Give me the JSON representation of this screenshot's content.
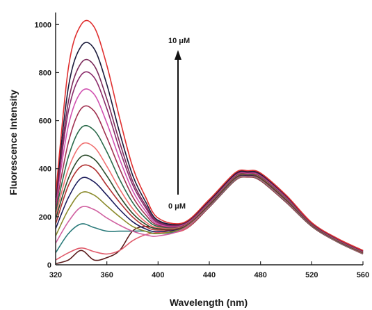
{
  "chart_data": {
    "type": "line",
    "xlabel": "Wavelength (nm)",
    "ylabel": "Fluorescence Intensity",
    "xlim": [
      320,
      560
    ],
    "ylim": [
      0,
      1050
    ],
    "x_ticks": [
      320,
      360,
      400,
      440,
      480,
      520,
      560
    ],
    "y_ticks": [
      0,
      200,
      400,
      600,
      800,
      1000
    ],
    "grid": false,
    "legend": "none",
    "annotations": {
      "top_label": "10 μM",
      "bottom_label": "0 μM",
      "arrow_direction": "up"
    },
    "series": [
      {
        "color": "#5a1a1a",
        "x": [
          320,
          330,
          340,
          350,
          360,
          370,
          380,
          390,
          400,
          420,
          440,
          460,
          470,
          480,
          500,
          520,
          540,
          560
        ],
        "y": [
          5,
          20,
          60,
          20,
          30,
          60,
          140,
          160,
          150,
          145,
          240,
          350,
          365,
          350,
          260,
          160,
          95,
          45
        ]
      },
      {
        "color": "#e05a6a",
        "x": [
          320,
          330,
          340,
          350,
          360,
          370,
          380,
          390,
          400,
          420,
          440,
          460,
          470,
          480,
          500,
          520,
          540,
          560
        ],
        "y": [
          20,
          50,
          70,
          55,
          45,
          60,
          100,
          125,
          135,
          145,
          242,
          352,
          366,
          352,
          262,
          162,
          96,
          46
        ]
      },
      {
        "color": "#2a7a7a",
        "x": [
          320,
          330,
          340,
          350,
          360,
          370,
          380,
          390,
          400,
          420,
          440,
          460,
          470,
          480,
          500,
          520,
          540,
          560
        ],
        "y": [
          50,
          130,
          170,
          155,
          140,
          140,
          140,
          140,
          130,
          150,
          244,
          354,
          368,
          354,
          264,
          163,
          97,
          47
        ]
      },
      {
        "color": "#d060a0",
        "x": [
          320,
          330,
          340,
          350,
          360,
          370,
          380,
          390,
          400,
          420,
          440,
          460,
          470,
          480,
          500,
          520,
          540,
          560
        ],
        "y": [
          90,
          180,
          240,
          230,
          195,
          165,
          140,
          125,
          120,
          150,
          246,
          356,
          369,
          356,
          266,
          164,
          98,
          48
        ]
      },
      {
        "color": "#8a8a2a",
        "x": [
          320,
          330,
          340,
          350,
          360,
          370,
          380,
          390,
          400,
          420,
          440,
          460,
          470,
          480,
          500,
          520,
          540,
          560
        ],
        "y": [
          120,
          230,
          300,
          290,
          245,
          200,
          160,
          140,
          130,
          155,
          248,
          358,
          371,
          358,
          268,
          165,
          99,
          49
        ]
      },
      {
        "color": "#1a1a5a",
        "x": [
          320,
          330,
          340,
          350,
          360,
          370,
          380,
          390,
          400,
          420,
          440,
          460,
          470,
          480,
          500,
          520,
          540,
          560
        ],
        "y": [
          150,
          280,
          360,
          345,
          290,
          230,
          180,
          150,
          138,
          158,
          250,
          360,
          372,
          360,
          270,
          166,
          100,
          50
        ]
      },
      {
        "color": "#b03030",
        "x": [
          320,
          330,
          340,
          350,
          360,
          370,
          380,
          390,
          400,
          420,
          440,
          460,
          470,
          480,
          500,
          520,
          540,
          560
        ],
        "y": [
          170,
          330,
          410,
          400,
          330,
          260,
          200,
          160,
          145,
          160,
          252,
          362,
          374,
          362,
          272,
          167,
          101,
          51
        ]
      },
      {
        "color": "#2a4a2a",
        "x": [
          320,
          330,
          340,
          350,
          360,
          370,
          380,
          390,
          400,
          420,
          440,
          460,
          470,
          480,
          500,
          520,
          540,
          560
        ],
        "y": [
          190,
          360,
          450,
          440,
          370,
          285,
          215,
          170,
          150,
          162,
          254,
          364,
          375,
          364,
          274,
          168,
          102,
          52
        ]
      },
      {
        "color": "#f07070",
        "x": [
          320,
          330,
          340,
          350,
          360,
          370,
          380,
          390,
          400,
          420,
          440,
          460,
          470,
          480,
          500,
          520,
          540,
          560
        ],
        "y": [
          205,
          400,
          500,
          490,
          410,
          315,
          235,
          180,
          155,
          163,
          256,
          366,
          377,
          366,
          276,
          169,
          103,
          53
        ]
      },
      {
        "color": "#2a6a4a",
        "x": [
          320,
          330,
          340,
          350,
          360,
          370,
          380,
          390,
          400,
          420,
          440,
          460,
          470,
          480,
          500,
          520,
          540,
          560
        ],
        "y": [
          220,
          450,
          570,
          560,
          470,
          355,
          260,
          195,
          160,
          165,
          258,
          368,
          378,
          368,
          278,
          170,
          104,
          54
        ]
      },
      {
        "color": "#a03050",
        "x": [
          320,
          330,
          340,
          350,
          360,
          370,
          380,
          390,
          400,
          420,
          440,
          460,
          470,
          480,
          500,
          520,
          540,
          560
        ],
        "y": [
          235,
          510,
          650,
          640,
          530,
          400,
          285,
          210,
          165,
          166,
          260,
          370,
          380,
          370,
          280,
          171,
          105,
          55
        ]
      },
      {
        "color": "#d050b0",
        "x": [
          320,
          330,
          340,
          350,
          360,
          370,
          380,
          390,
          400,
          420,
          440,
          460,
          470,
          480,
          500,
          520,
          540,
          560
        ],
        "y": [
          250,
          580,
          720,
          710,
          590,
          440,
          310,
          225,
          170,
          168,
          262,
          372,
          382,
          372,
          282,
          172,
          106,
          56
        ]
      },
      {
        "color": "#8a2a6a",
        "x": [
          320,
          330,
          340,
          350,
          360,
          370,
          380,
          390,
          400,
          420,
          440,
          460,
          470,
          480,
          500,
          520,
          540,
          560
        ],
        "y": [
          260,
          640,
          790,
          780,
          650,
          480,
          335,
          240,
          175,
          170,
          264,
          374,
          384,
          374,
          284,
          173,
          107,
          57
        ]
      },
      {
        "color": "#7a2a5a",
        "x": [
          320,
          330,
          340,
          350,
          360,
          370,
          380,
          390,
          400,
          420,
          440,
          460,
          470,
          480,
          500,
          520,
          540,
          560
        ],
        "y": [
          270,
          680,
          840,
          830,
          690,
          510,
          350,
          250,
          180,
          172,
          266,
          376,
          386,
          376,
          286,
          174,
          108,
          58
        ]
      },
      {
        "color": "#1a1a3a",
        "x": [
          320,
          330,
          340,
          350,
          360,
          370,
          380,
          390,
          400,
          420,
          440,
          460,
          470,
          480,
          500,
          520,
          540,
          560
        ],
        "y": [
          280,
          740,
          910,
          900,
          750,
          550,
          375,
          265,
          185,
          174,
          268,
          378,
          388,
          378,
          288,
          175,
          109,
          59
        ]
      },
      {
        "color": "#e03030",
        "x": [
          320,
          330,
          340,
          350,
          360,
          370,
          380,
          390,
          400,
          420,
          440,
          460,
          470,
          480,
          500,
          520,
          540,
          560
        ],
        "y": [
          290,
          820,
          1000,
          990,
          830,
          610,
          410,
          285,
          195,
          176,
          272,
          382,
          392,
          382,
          290,
          176,
          110,
          60
        ]
      }
    ]
  }
}
